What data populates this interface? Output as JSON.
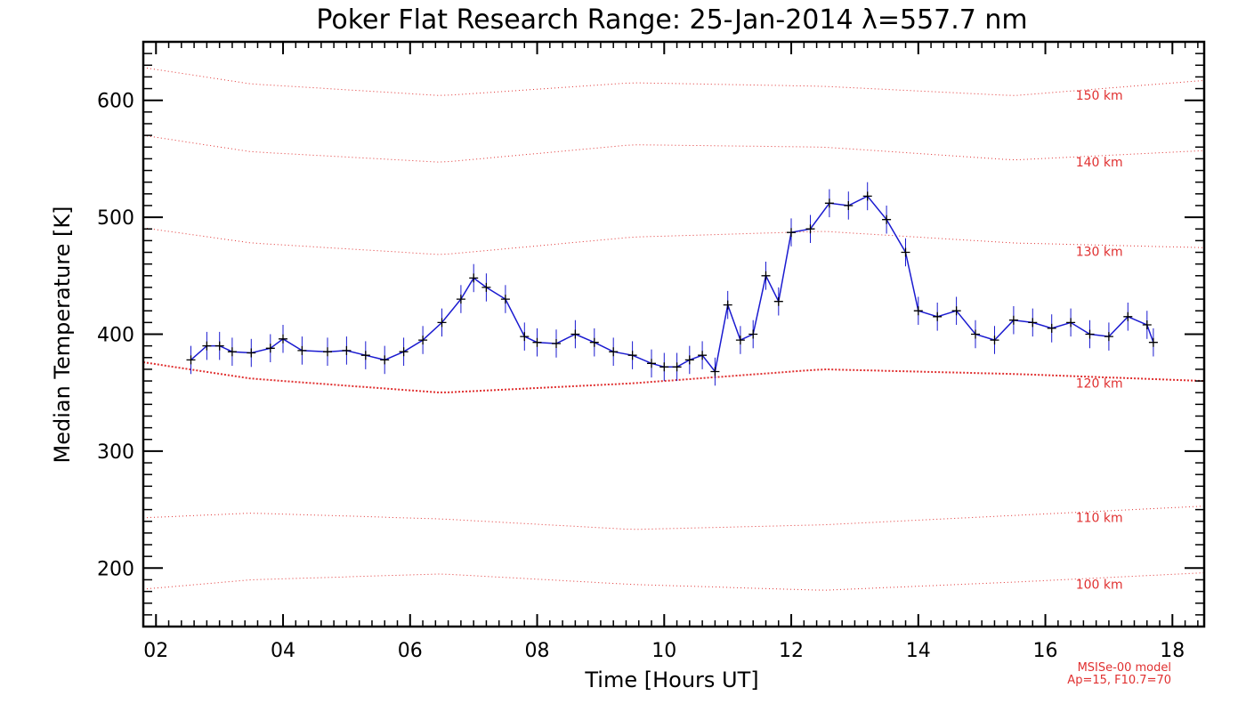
{
  "chart_data": {
    "type": "line",
    "title": "Poker Flat Research Range: 25-Jan-2014 λ=557.7 nm",
    "xlabel": "Time [Hours UT]",
    "ylabel": "Median Temperature [K]",
    "xlim": [
      1.8,
      18.5
    ],
    "ylim": [
      150,
      650
    ],
    "x_ticks": [
      2,
      4,
      6,
      8,
      10,
      12,
      14,
      16,
      18
    ],
    "x_tick_labels": [
      "02",
      "04",
      "06",
      "08",
      "10",
      "12",
      "14",
      "16",
      "18"
    ],
    "y_ticks": [
      200,
      300,
      400,
      500,
      600
    ],
    "y_tick_labels": [
      "200",
      "300",
      "400",
      "500",
      "600"
    ],
    "grid": false,
    "error_bar_halfwidth_K": 12,
    "series": [
      {
        "color": "#1a1ad0",
        "marker": "+",
        "marker_color": "#000000",
        "with_error_bars": true,
        "x": [
          2.55,
          2.8,
          3.0,
          3.2,
          3.5,
          3.8,
          4.0,
          4.3,
          4.7,
          5.0,
          5.3,
          5.6,
          5.9,
          6.2,
          6.5,
          6.8,
          7.0,
          7.2,
          7.5,
          7.8,
          8.0,
          8.3,
          8.6,
          8.9,
          9.2,
          9.5,
          9.8,
          10.0,
          10.2,
          10.4,
          10.6,
          10.8,
          11.0,
          11.2,
          11.4,
          11.6,
          11.8,
          12.0,
          12.3,
          12.6,
          12.9,
          13.2,
          13.5,
          13.8,
          14.0,
          14.3,
          14.6,
          14.9,
          15.2,
          15.5,
          15.8,
          16.1,
          16.4,
          16.7,
          17.0,
          17.3,
          17.6,
          17.7
        ],
        "y": [
          378,
          390,
          390,
          385,
          384,
          388,
          396,
          386,
          385,
          386,
          382,
          378,
          385,
          395,
          410,
          430,
          448,
          440,
          430,
          398,
          393,
          392,
          400,
          393,
          385,
          382,
          375,
          372,
          372,
          378,
          382,
          368,
          425,
          395,
          400,
          450,
          428,
          487,
          490,
          512,
          510,
          518,
          498,
          470,
          420,
          415,
          420,
          400,
          395,
          412,
          410,
          405,
          410,
          400,
          398,
          415,
          408,
          393
        ]
      }
    ],
    "model_curves": [
      {
        "label": "150 km",
        "x": [
          1.8,
          3.5,
          6.5,
          9.5,
          12.5,
          15.5,
          18.5
        ],
        "y": [
          628,
          614,
          604,
          615,
          612,
          604,
          617
        ]
      },
      {
        "label": "140 km",
        "x": [
          1.8,
          3.5,
          6.5,
          9.5,
          12.5,
          15.5,
          18.5
        ],
        "y": [
          570,
          556,
          547,
          562,
          560,
          549,
          557
        ]
      },
      {
        "label": "130 km",
        "x": [
          1.8,
          3.5,
          6.5,
          9.5,
          12.5,
          15.5,
          18.5
        ],
        "y": [
          491,
          478,
          468,
          483,
          488,
          478,
          474
        ]
      },
      {
        "label": "120 km",
        "x": [
          1.8,
          3.5,
          6.5,
          9.5,
          12.5,
          15.5,
          18.5
        ],
        "y": [
          376,
          362,
          350,
          358,
          370,
          366,
          360
        ]
      },
      {
        "label": "110 km",
        "x": [
          1.8,
          3.5,
          6.5,
          9.5,
          12.5,
          15.5,
          18.5
        ],
        "y": [
          243,
          247,
          242,
          233,
          237,
          245,
          253
        ]
      },
      {
        "label": "100 km",
        "x": [
          1.8,
          3.5,
          6.5,
          9.5,
          12.5,
          15.5,
          18.5
        ],
        "y": [
          182,
          190,
          195,
          186,
          181,
          188,
          196
        ]
      }
    ],
    "model_note_lines": [
      "MSISe-00 model",
      "Ap=15, F10.7=70"
    ]
  }
}
